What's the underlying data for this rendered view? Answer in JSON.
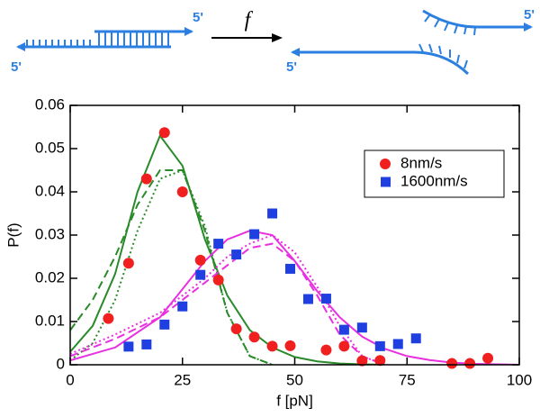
{
  "diagram": {
    "labels": [
      "5'",
      "5'",
      "5'",
      "5'"
    ],
    "arrow_label": "f"
  },
  "chart_data": {
    "type": "scatter",
    "x_label": "f [pN]",
    "y_label": "P(f)",
    "xlim": [
      0,
      100
    ],
    "ylim": [
      0,
      0.06
    ],
    "xticks": [
      0,
      25,
      50,
      75,
      100
    ],
    "yticks": [
      0,
      0.01,
      0.02,
      0.03,
      0.04,
      0.05,
      0.06
    ],
    "legend": "upper right",
    "series": [
      {
        "name": "8nm/s",
        "color": "#f02020",
        "marker": "circle",
        "x": [
          8.5,
          13,
          17,
          21,
          25,
          29,
          33,
          37,
          41,
          45,
          49,
          57,
          61,
          65,
          69,
          85,
          89,
          93
        ],
        "values": [
          0.0107,
          0.0235,
          0.043,
          0.0537,
          0.04,
          0.0242,
          0.0196,
          0.0083,
          0.0064,
          0.0043,
          0.0044,
          0.0034,
          0.0043,
          0.0009,
          0.001,
          0.0003,
          0.0003,
          0.0015
        ]
      },
      {
        "name": "1600nm/s",
        "color": "#1f3fe0",
        "marker": "square",
        "x": [
          13,
          17,
          21,
          25,
          29,
          33,
          37,
          41,
          45,
          49,
          53,
          57,
          61,
          65,
          69,
          73,
          77
        ],
        "values": [
          0.0042,
          0.0047,
          0.0093,
          0.0135,
          0.0208,
          0.028,
          0.0255,
          0.0302,
          0.035,
          0.0222,
          0.0152,
          0.0153,
          0.0081,
          0.0086,
          0.0043,
          0.0048,
          0.0061
        ]
      },
      {
        "type": "line",
        "color": "#2a8a2a",
        "style": "solid",
        "x": [
          0,
          5,
          10,
          15,
          20,
          25,
          30,
          35,
          40,
          45,
          50,
          55,
          60,
          65,
          70
        ],
        "values": [
          0.003,
          0.009,
          0.021,
          0.04,
          0.053,
          0.046,
          0.029,
          0.016,
          0.008,
          0.004,
          0.0018,
          0.0008,
          0.0003,
          0.0001,
          0
        ]
      },
      {
        "type": "line",
        "color": "#2a8a2a",
        "style": "dashed",
        "x": [
          0,
          5,
          10,
          15,
          20,
          25,
          30,
          35,
          40,
          45
        ],
        "values": [
          0.008,
          0.015,
          0.025,
          0.037,
          0.045,
          0.045,
          0.031,
          0.012,
          0.002,
          0
        ]
      },
      {
        "type": "line",
        "color": "#2a8a2a",
        "style": "dotted",
        "x": [
          0,
          5,
          10,
          15,
          20,
          25,
          30,
          35,
          40,
          45
        ],
        "values": [
          0.001,
          0.005,
          0.015,
          0.031,
          0.043,
          0.045,
          0.032,
          0.012,
          0.002,
          0
        ]
      },
      {
        "type": "line",
        "color": "#e830e0",
        "style": "solid",
        "x": [
          0,
          10,
          20,
          30,
          35,
          40,
          45,
          50,
          55,
          60,
          65,
          70,
          75,
          80,
          85,
          90,
          95,
          100
        ],
        "values": [
          0.001,
          0.004,
          0.011,
          0.024,
          0.029,
          0.031,
          0.03,
          0.024,
          0.017,
          0.011,
          0.0065,
          0.0037,
          0.002,
          0.0011,
          0.0005,
          0.0002,
          0.0001,
          0
        ]
      },
      {
        "type": "line",
        "color": "#e830e0",
        "style": "dashed",
        "x": [
          0,
          10,
          20,
          30,
          35,
          40,
          45,
          50,
          55,
          60,
          65,
          70
        ],
        "values": [
          0.002,
          0.006,
          0.011,
          0.019,
          0.023,
          0.027,
          0.028,
          0.024,
          0.016,
          0.007,
          0.002,
          0
        ]
      },
      {
        "type": "line",
        "color": "#e830e0",
        "style": "dotted",
        "x": [
          0,
          10,
          20,
          30,
          35,
          40,
          45,
          50,
          55,
          60,
          65,
          70
        ],
        "values": [
          0.0025,
          0.007,
          0.012,
          0.02,
          0.025,
          0.028,
          0.03,
          0.026,
          0.018,
          0.009,
          0.002,
          0
        ]
      }
    ]
  }
}
